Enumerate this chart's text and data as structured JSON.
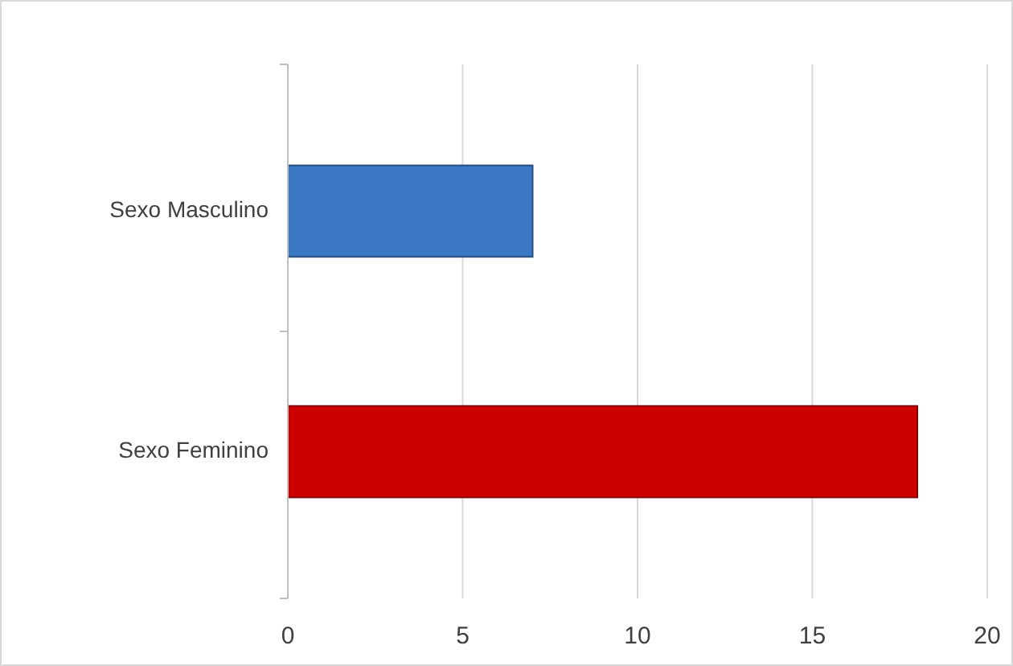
{
  "chart_data": {
    "type": "bar",
    "orientation": "horizontal",
    "categories": [
      "Sexo Masculino",
      "Sexo Feminino"
    ],
    "values": [
      7,
      18
    ],
    "colors": [
      "#3a78c4",
      "#cc0000"
    ],
    "xlim": [
      0,
      20
    ],
    "xticks": [
      0,
      5,
      10,
      15,
      20
    ],
    "grid": "x"
  }
}
